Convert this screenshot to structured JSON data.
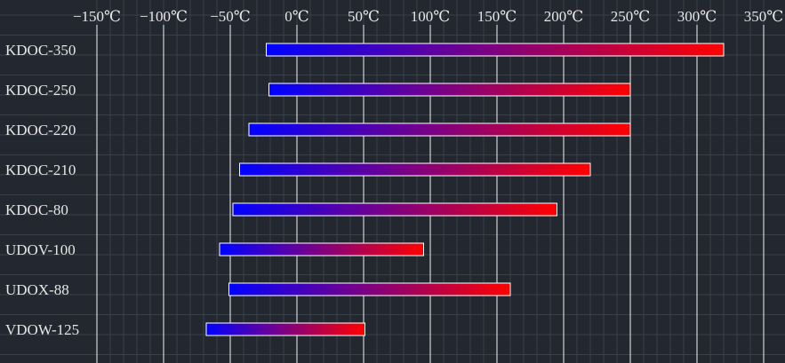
{
  "chart_data": {
    "type": "bar",
    "orientation": "horizontal-range",
    "categories": [
      "KDOC-350",
      "KDOC-250",
      "KDOC-220",
      "KDOC-210",
      "KDOC-80",
      "UDOV-100",
      "UDOX-88",
      "VDOW-125"
    ],
    "ranges": [
      [
        -23,
        320
      ],
      [
        -21,
        250
      ],
      [
        -36,
        250
      ],
      [
        -43,
        220
      ],
      [
        -48,
        195
      ],
      [
        -58,
        95
      ],
      [
        -51,
        160
      ],
      [
        -68,
        51
      ]
    ],
    "x_ticks": [
      -150,
      -100,
      -50,
      0,
      50,
      100,
      150,
      200,
      250,
      300,
      350
    ],
    "x_tick_labels": [
      "−150℃",
      "−100℃",
      "−50℃",
      "0℃",
      "50℃",
      "100℃",
      "150℃",
      "200℃",
      "250℃",
      "300℃",
      "350℃"
    ],
    "xlim": [
      -150,
      350
    ],
    "unit": "℃",
    "grid": true,
    "bar_gradient": [
      "#0000ff",
      "#ff0000"
    ],
    "colors": {
      "background": "#232830",
      "grid_major": "#f2f2f2",
      "grid_minor": "#3a4048",
      "text": "#e6e6e6",
      "bar_border": "#ffffff"
    }
  }
}
